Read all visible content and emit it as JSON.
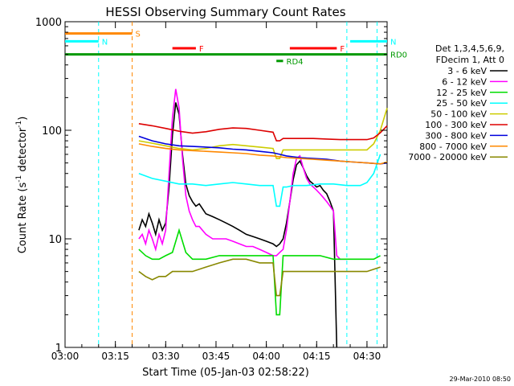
{
  "chart_data": {
    "type": "line",
    "title": "HESSI Observing Summary Count Rates",
    "xlabel": "Start Time (05-Jan-03 02:58:22)",
    "ylabel_main": "Count Rate (s",
    "ylabel_sup": "-1",
    "ylabel_mid": " detector",
    "ylabel_end": ")",
    "yscale": "log",
    "ylim": [
      1,
      1000
    ],
    "xlim_minutes": [
      2.0,
      98.0
    ],
    "x_ticks": [
      "03:00",
      "03:15",
      "03:30",
      "03:45",
      "04:00",
      "04:15",
      "04:30"
    ],
    "y_ticks": [
      "1",
      "10",
      "100",
      "1000"
    ],
    "legend": {
      "header1": "Det 1,3,4,5,6,9,",
      "header2": "FDecim 1, Att 0",
      "entries": [
        {
          "label": "3 - 6 keV",
          "color": "#000000"
        },
        {
          "label": "6 - 12 keV",
          "color": "#ff00ff"
        },
        {
          "label": "12 - 25 keV",
          "color": "#00dd00"
        },
        {
          "label": "25 - 50 keV",
          "color": "#00ffff"
        },
        {
          "label": "50 - 100 keV",
          "color": "#cccc00"
        },
        {
          "label": "100 - 300 keV",
          "color": "#dd0000"
        },
        {
          "label": "300 - 800 keV",
          "color": "#0000dd"
        },
        {
          "label": "800 - 7000 keV",
          "color": "#ff8800"
        },
        {
          "label": "7000 - 20000 keV",
          "color": "#888800"
        }
      ]
    },
    "flags": [
      {
        "label": "S",
        "color": "#ff8800",
        "x0": 2,
        "x1": 22,
        "y": 780
      },
      {
        "label": "N",
        "color": "#00ffff",
        "x0": 2,
        "x1": 12,
        "y": 660
      },
      {
        "label": "N",
        "color": "#00ffff",
        "x0": 87,
        "x1": 98,
        "y": 660
      },
      {
        "label": "F",
        "color": "#ff0000",
        "x0": 34,
        "x1": 41,
        "y": 570
      },
      {
        "label": "F",
        "color": "#ff0000",
        "x0": 69,
        "x1": 83,
        "y": 570
      },
      {
        "label": "RD0",
        "color": "#009900",
        "x0": 2,
        "x1": 98,
        "y": 500
      },
      {
        "label": "RD4",
        "color": "#009900",
        "x0": 65,
        "x1": 67,
        "y": 435
      }
    ],
    "vlines": [
      {
        "x": 12,
        "color": "#00ffff"
      },
      {
        "x": 22,
        "color": "#ff8800"
      },
      {
        "x": 86,
        "color": "#00ffff"
      },
      {
        "x": 95,
        "color": "#00ffff"
      }
    ],
    "series": [
      {
        "name": "3 - 6 keV",
        "color": "#000000",
        "x": [
          24,
          25,
          26,
          27,
          28,
          29,
          30,
          31,
          32,
          33,
          34,
          35,
          36,
          37,
          38,
          39,
          40,
          41,
          42,
          44,
          46,
          48,
          50,
          52,
          54,
          56,
          58,
          60,
          62,
          64,
          65,
          66,
          67,
          68,
          69,
          70,
          71,
          72,
          73,
          74,
          75,
          76,
          77,
          78,
          79,
          80,
          81,
          82,
          83
        ],
        "y": [
          12,
          15,
          13,
          17,
          14,
          11,
          15,
          12,
          14,
          30,
          90,
          180,
          140,
          60,
          32,
          25,
          22,
          20,
          21,
          17,
          16,
          15,
          14,
          13,
          12,
          11,
          10.5,
          10,
          9.5,
          9,
          8.5,
          9,
          10,
          14,
          22,
          35,
          48,
          52,
          45,
          38,
          34,
          32,
          30,
          31,
          28,
          26,
          22,
          18,
          1
        ]
      },
      {
        "name": "6 - 12 keV",
        "color": "#ff00ff",
        "x": [
          24,
          25,
          26,
          27,
          28,
          29,
          30,
          31,
          32,
          33,
          34,
          35,
          36,
          37,
          38,
          39,
          40,
          41,
          42,
          44,
          46,
          48,
          50,
          52,
          54,
          56,
          58,
          60,
          62,
          64,
          65,
          66,
          67,
          68,
          69,
          70,
          71,
          72,
          73,
          74,
          75,
          76,
          77,
          78,
          79,
          80,
          81,
          82,
          83,
          84,
          86
        ],
        "y": [
          10,
          11,
          9,
          12,
          10,
          8,
          11,
          9,
          12,
          40,
          130,
          240,
          160,
          55,
          25,
          18,
          15,
          13,
          13,
          11,
          10,
          10,
          10,
          9.5,
          9,
          8.5,
          8.5,
          8,
          7.5,
          7,
          7,
          7.5,
          8,
          12,
          22,
          40,
          55,
          58,
          45,
          36,
          32,
          30,
          28,
          26,
          24,
          22,
          20,
          18,
          7,
          6.5,
          6.5
        ]
      },
      {
        "name": "12 - 25 keV",
        "color": "#00dd00",
        "x": [
          24,
          26,
          28,
          30,
          32,
          34,
          36,
          38,
          40,
          44,
          48,
          52,
          56,
          60,
          64,
          65,
          66,
          67,
          68,
          70,
          74,
          78,
          82,
          86,
          90,
          94,
          96
        ],
        "y": [
          8,
          7,
          6.5,
          6.5,
          7,
          7.5,
          12,
          7.5,
          6.5,
          6.5,
          7,
          7,
          7,
          7,
          7,
          2,
          2,
          7,
          7,
          7,
          7,
          7,
          6.5,
          6.5,
          6.5,
          6.5,
          7
        ]
      },
      {
        "name": "25 - 50 keV",
        "color": "#00ffff",
        "x": [
          24,
          28,
          32,
          36,
          40,
          44,
          48,
          52,
          56,
          60,
          64,
          65,
          66,
          67,
          68,
          70,
          74,
          78,
          82,
          86,
          90,
          92,
          94,
          96
        ],
        "y": [
          40,
          36,
          34,
          32,
          32,
          31,
          32,
          33,
          32,
          31,
          31,
          20,
          20,
          30,
          30,
          31,
          31,
          32,
          32,
          31,
          31,
          33,
          40,
          60
        ]
      },
      {
        "name": "50 - 100 keV",
        "color": "#cccc00",
        "x": [
          24,
          28,
          32,
          36,
          40,
          44,
          48,
          52,
          56,
          60,
          64,
          65,
          66,
          67,
          68,
          72,
          76,
          80,
          84,
          88,
          92,
          94,
          96,
          98
        ],
        "y": [
          80,
          76,
          72,
          68,
          66,
          68,
          72,
          74,
          72,
          70,
          68,
          55,
          55,
          66,
          66,
          66,
          66,
          66,
          66,
          66,
          66,
          75,
          100,
          160
        ]
      },
      {
        "name": "100 - 300 keV",
        "color": "#dd0000",
        "x": [
          24,
          28,
          32,
          36,
          40,
          44,
          48,
          52,
          56,
          60,
          64,
          65,
          66,
          67,
          68,
          72,
          76,
          80,
          84,
          88,
          92,
          94,
          96,
          98
        ],
        "y": [
          115,
          110,
          104,
          98,
          94,
          97,
          102,
          105,
          104,
          100,
          96,
          80,
          80,
          84,
          84,
          84,
          84,
          83,
          82,
          82,
          82,
          85,
          95,
          110
        ]
      },
      {
        "name": "300 - 800 keV",
        "color": "#0000dd",
        "x": [
          24,
          28,
          32,
          36,
          40,
          44,
          48,
          52,
          56,
          60,
          64,
          66,
          68,
          72,
          76,
          80,
          84,
          88,
          92,
          96,
          98
        ],
        "y": [
          88,
          80,
          75,
          72,
          71,
          70,
          69,
          67,
          66,
          64,
          62,
          60,
          58,
          56,
          55,
          54,
          52,
          51,
          50,
          49,
          50
        ]
      },
      {
        "name": "800 - 7000 keV",
        "color": "#ff8800",
        "x": [
          24,
          28,
          32,
          36,
          40,
          44,
          48,
          52,
          56,
          60,
          64,
          66,
          68,
          72,
          76,
          80,
          84,
          88,
          92,
          96,
          98
        ],
        "y": [
          75,
          71,
          68,
          66,
          65,
          64,
          63,
          62,
          61,
          59,
          58,
          57,
          56,
          55,
          54,
          53,
          52,
          51,
          50,
          49,
          51
        ]
      },
      {
        "name": "7000 - 20000 keV",
        "color": "#888800",
        "x": [
          24,
          26,
          28,
          30,
          32,
          34,
          36,
          38,
          40,
          44,
          48,
          52,
          56,
          60,
          64,
          65,
          66,
          67,
          68,
          72,
          76,
          80,
          84,
          88,
          92,
          96
        ],
        "y": [
          5,
          4.5,
          4.2,
          4.5,
          4.5,
          5,
          5,
          5,
          5,
          5.5,
          6,
          6.5,
          6.5,
          6,
          6,
          3,
          3,
          5,
          5,
          5,
          5,
          5,
          5,
          5,
          5,
          5.5
        ]
      }
    ]
  },
  "footer": {
    "timestamp": "29-Mar-2010 08:50"
  }
}
